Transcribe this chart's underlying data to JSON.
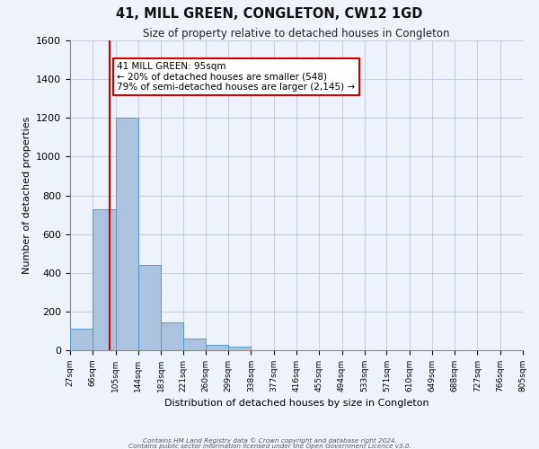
{
  "title": "41, MILL GREEN, CONGLETON, CW12 1GD",
  "subtitle": "Size of property relative to detached houses in Congleton",
  "xlabel": "Distribution of detached houses by size in Congleton",
  "ylabel": "Number of detached properties",
  "footer_line1": "Contains HM Land Registry data © Crown copyright and database right 2024.",
  "footer_line2": "Contains public sector information licensed under the Open Government Licence v3.0.",
  "bin_edges": [
    27,
    66,
    105,
    144,
    183,
    221,
    260,
    299,
    338,
    377,
    416,
    455,
    494,
    533,
    571,
    610,
    649,
    688,
    727,
    766,
    805
  ],
  "bar_heights": [
    110,
    730,
    1200,
    440,
    145,
    60,
    30,
    20,
    0,
    0,
    0,
    0,
    0,
    0,
    0,
    0,
    0,
    0,
    0,
    0
  ],
  "bar_color": "#aac4e0",
  "bar_edge_color": "#5599cc",
  "property_x": 95,
  "annotation_line1": "41 MILL GREEN: 95sqm",
  "annotation_line2": "← 20% of detached houses are smaller (548)",
  "annotation_line3": "79% of semi-detached houses are larger (2,145) →",
  "vline_color": "#cc0000",
  "ylim": [
    0,
    1600
  ],
  "xlim": [
    27,
    805
  ],
  "bg_color": "#eef2fb",
  "grid_color": "#c8cfe0"
}
